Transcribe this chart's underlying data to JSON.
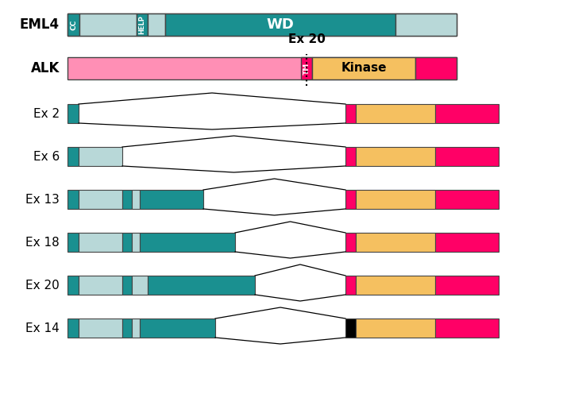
{
  "bg_color": "#ffffff",
  "colors": {
    "teal_dark": "#1a9090",
    "teal_light": "#b8d8d8",
    "pink_light": "#ff8fb5",
    "pink_dark": "#ff0066",
    "orange": "#f5c060",
    "black": "#000000"
  },
  "labels": {
    "eml4": "EML4",
    "alk": "ALK",
    "ex20": "Ex 20",
    "tm": "TM",
    "kinase": "Kinase",
    "cc": "CC",
    "help": "HELP",
    "wd": "WD"
  },
  "variants": [
    {
      "label": "Ex 2",
      "eml4_segs": [
        [
          14,
          "teal_dark"
        ]
      ],
      "alk_cap": "pink_dark"
    },
    {
      "label": "Ex 6",
      "eml4_segs": [
        [
          14,
          "teal_dark"
        ],
        [
          55,
          "teal_light"
        ]
      ],
      "alk_cap": "pink_dark"
    },
    {
      "label": "Ex 13",
      "eml4_segs": [
        [
          14,
          "teal_dark"
        ],
        [
          55,
          "teal_light"
        ],
        [
          12,
          "teal_dark"
        ],
        [
          10,
          "teal_light"
        ],
        [
          80,
          "teal_dark"
        ]
      ],
      "alk_cap": "pink_dark"
    },
    {
      "label": "Ex 18",
      "eml4_segs": [
        [
          14,
          "teal_dark"
        ],
        [
          55,
          "teal_light"
        ],
        [
          12,
          "teal_dark"
        ],
        [
          10,
          "teal_light"
        ],
        [
          120,
          "teal_dark"
        ]
      ],
      "alk_cap": "pink_dark"
    },
    {
      "label": "Ex 20",
      "eml4_segs": [
        [
          14,
          "teal_dark"
        ],
        [
          55,
          "teal_light"
        ],
        [
          12,
          "teal_dark"
        ],
        [
          20,
          "teal_light"
        ],
        [
          135,
          "teal_dark"
        ]
      ],
      "alk_cap": "pink_dark"
    },
    {
      "label": "Ex 14",
      "eml4_segs": [
        [
          14,
          "teal_dark"
        ],
        [
          55,
          "teal_light"
        ],
        [
          12,
          "teal_dark"
        ],
        [
          10,
          "teal_light"
        ],
        [
          95,
          "teal_dark"
        ]
      ],
      "alk_cap": "black"
    }
  ]
}
